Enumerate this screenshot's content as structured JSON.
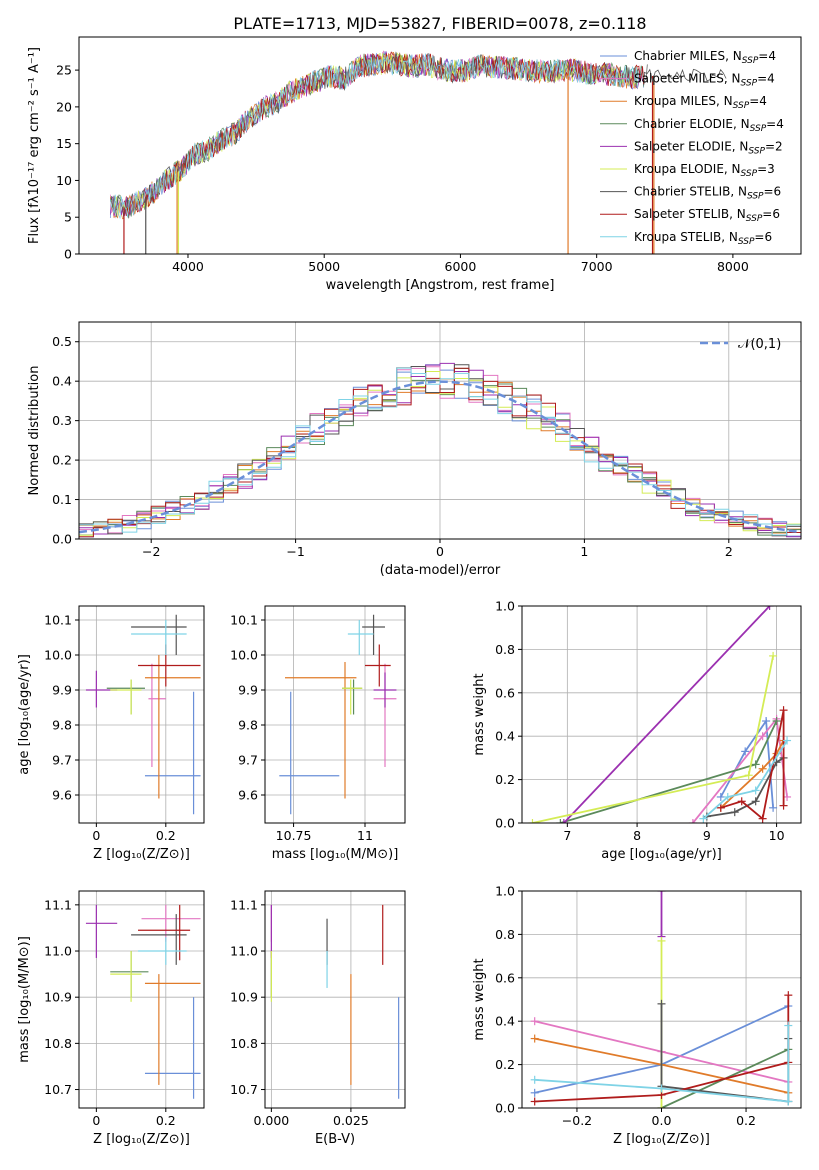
{
  "figure_title": "PLATE=1713, MJD=53827, FIBERID=0078, z=0.118",
  "colors": {
    "chabrier_miles": "#6a8fd8",
    "salpeter_miles": "#e377c2",
    "kroupa_miles": "#e07b2a",
    "chabrier_elodie": "#5b8a5b",
    "salpeter_elodie": "#9b30b0",
    "kroupa_elodie": "#d4ec55",
    "chabrier_stelib": "#555555",
    "salpeter_stelib": "#b01c1c",
    "kroupa_stelib": "#7fd3e6",
    "normal_curve": "#6a8fd8",
    "grid": "#b0b0b0"
  },
  "chart_data": [
    {
      "id": "spectrum",
      "type": "line",
      "xlabel": "wavelength [Angstrom, rest frame]",
      "ylabel": "Flux [fλ10⁻¹⁷ erg cm⁻² s⁻¹ A⁻¹]",
      "xlim": [
        3200,
        8500
      ],
      "ylim": [
        0,
        29.5
      ],
      "xticks": [
        4000,
        5000,
        6000,
        7000,
        8000
      ],
      "yticks": [
        0,
        5,
        10,
        15,
        20,
        25
      ],
      "grid": false,
      "legend_position": "right",
      "envelope_x": [
        3450,
        3550,
        3650,
        3750,
        3850,
        3950,
        4050,
        4150,
        4250,
        4350,
        4450,
        4550,
        4650,
        4750,
        4850,
        4950,
        5050,
        5150,
        5250,
        5350,
        5450,
        5550,
        5650,
        5750,
        5850,
        5950,
        6050,
        6150,
        6250,
        6350,
        6450,
        6550,
        6650,
        6750,
        6850,
        6950,
        7050,
        7150,
        7250,
        7350
      ],
      "envelope_y": [
        6.5,
        6.3,
        7.2,
        8.5,
        10.2,
        11.5,
        13.5,
        14.2,
        15.5,
        16.5,
        18.5,
        19.8,
        20.5,
        22.0,
        22.8,
        23.5,
        24.2,
        23.8,
        25.5,
        25.8,
        26.0,
        25.8,
        25.5,
        25.8,
        25.2,
        24.8,
        25.0,
        25.6,
        25.5,
        25.3,
        25.1,
        24.9,
        24.8,
        25.0,
        24.9,
        24.6,
        24.5,
        24.3,
        24.0,
        24.2
      ],
      "series": [
        {
          "name": "Chabrier MILES, N_SSP=4",
          "color_key": "chabrier_miles"
        },
        {
          "name": "Salpeter MILES, N_SSP=4",
          "color_key": "salpeter_miles"
        },
        {
          "name": "Kroupa MILES, N_SSP=4",
          "color_key": "kroupa_miles"
        },
        {
          "name": "Chabrier ELODIE, N_SSP=4",
          "color_key": "chabrier_elodie"
        },
        {
          "name": "Salpeter ELODIE, N_SSP=2",
          "color_key": "salpeter_elodie"
        },
        {
          "name": "Kroupa ELODIE, N_SSP=3",
          "color_key": "kroupa_elodie"
        },
        {
          "name": "Chabrier STELIB, N_SSP=6",
          "color_key": "chabrier_stelib"
        },
        {
          "name": "Salpeter STELIB, N_SSP=6",
          "color_key": "salpeter_stelib"
        },
        {
          "name": "Kroupa STELIB, N_SSP=6",
          "color_key": "kroupa_stelib"
        }
      ]
    },
    {
      "id": "residuals",
      "type": "bar",
      "xlabel": "(data-model)/error",
      "ylabel": "Normed distribution",
      "xlim": [
        -2.5,
        2.5
      ],
      "ylim": [
        0,
        0.55
      ],
      "xticks": [
        -2,
        -1,
        0,
        1,
        2
      ],
      "yticks": [
        0.0,
        0.1,
        0.2,
        0.3,
        0.4,
        0.5
      ],
      "grid": true,
      "legend_position": "top-right",
      "legend_label": "𝒩(0,1)",
      "bin_width": 0.1,
      "bin_start": -2.5
    },
    {
      "id": "age_vs_Z",
      "type": "scatter",
      "xlabel": "Z [log10(Z/Z⊙)]",
      "ylabel": "age  [log10(age/yr)]",
      "xlim": [
        -0.05,
        0.31
      ],
      "ylim": [
        9.52,
        10.14
      ],
      "xticks": [
        0.0,
        0.2
      ],
      "yticks": [
        9.6,
        9.7,
        9.8,
        9.9,
        10.0,
        10.1
      ],
      "grid": true,
      "points": [
        {
          "c": "chabrier_miles",
          "x": 0.24,
          "y": 9.655,
          "xerr": 0.04,
          "yerr": 0.11,
          "x2": 0.28,
          "xlo": 0.14,
          "xhi": 0.3,
          "ylo": 9.545,
          "yhi": 9.895
        },
        {
          "c": "salpeter_miles",
          "x": 0.16,
          "y": 9.875,
          "xlo": 0.15,
          "xhi": 0.2,
          "ylo": 9.68,
          "yhi": 9.975
        },
        {
          "c": "kroupa_miles",
          "x": 0.18,
          "y": 9.935,
          "xlo": 0.14,
          "xhi": 0.3,
          "ylo": 9.59,
          "yhi": 10.0
        },
        {
          "c": "chabrier_elodie",
          "x": 0.1,
          "y": 9.905,
          "xlo": 0.03,
          "xhi": 0.14,
          "ylo": 9.83,
          "yhi": 9.93
        },
        {
          "c": "salpeter_elodie",
          "x": 0.0,
          "y": 9.9,
          "xlo": -0.03,
          "xhi": 0.06,
          "ylo": 9.85,
          "yhi": 9.955
        },
        {
          "c": "kroupa_elodie",
          "x": 0.1,
          "y": 9.9,
          "xlo": 0.04,
          "xhi": 0.13,
          "ylo": 9.83,
          "yhi": 9.93
        },
        {
          "c": "chabrier_stelib",
          "x": 0.23,
          "y": 10.08,
          "xlo": 0.1,
          "xhi": 0.26,
          "ylo": 10.0,
          "yhi": 10.115
        },
        {
          "c": "salpeter_stelib",
          "x": 0.2,
          "y": 9.97,
          "xlo": 0.12,
          "xhi": 0.3,
          "ylo": 9.91,
          "yhi": 10.03
        },
        {
          "c": "kroupa_stelib",
          "x": 0.2,
          "y": 10.06,
          "xlo": 0.1,
          "xhi": 0.26,
          "ylo": 10.0,
          "yhi": 10.1
        }
      ]
    },
    {
      "id": "age_vs_mass",
      "type": "scatter",
      "xlabel": "mass [log10(M/M⊙)]",
      "ylabel": "",
      "xlim": [
        10.65,
        11.14
      ],
      "ylim": [
        9.52,
        10.14
      ],
      "xticks": [
        10.75,
        11.0
      ],
      "yticks": [
        9.6,
        9.7,
        9.8,
        9.9,
        10.0,
        10.1
      ],
      "grid": true,
      "points": [
        {
          "c": "chabrier_miles",
          "ylo": 9.545,
          "yhi": 9.895,
          "x": 10.74,
          "xlo": 10.7,
          "xhi": 10.91,
          "y": 9.655
        },
        {
          "c": "salpeter_miles",
          "ylo": 9.68,
          "yhi": 9.975,
          "x": 11.07,
          "xlo": 11.03,
          "xhi": 11.11,
          "y": 9.875
        },
        {
          "c": "kroupa_miles",
          "ylo": 9.59,
          "yhi": 9.98,
          "x": 10.93,
          "xlo": 10.72,
          "xhi": 10.97,
          "y": 9.935
        },
        {
          "c": "chabrier_elodie",
          "ylo": 9.83,
          "yhi": 9.93,
          "x": 10.96,
          "xlo": 10.92,
          "xhi": 10.99,
          "y": 9.905
        },
        {
          "c": "salpeter_elodie",
          "ylo": 9.85,
          "yhi": 9.95,
          "x": 11.07,
          "xlo": 11.03,
          "xhi": 11.11,
          "y": 9.9
        },
        {
          "c": "kroupa_elodie",
          "ylo": 9.83,
          "yhi": 9.93,
          "x": 10.95,
          "xlo": 10.92,
          "xhi": 10.99,
          "y": 9.905
        },
        {
          "c": "chabrier_stelib",
          "ylo": 10.0,
          "yhi": 10.115,
          "x": 11.03,
          "xlo": 10.99,
          "xhi": 11.07,
          "y": 10.08
        },
        {
          "c": "salpeter_stelib",
          "ylo": 9.91,
          "yhi": 10.03,
          "x": 11.05,
          "xlo": 11.0,
          "xhi": 11.09,
          "y": 9.97
        },
        {
          "c": "kroupa_stelib",
          "ylo": 10.0,
          "yhi": 10.1,
          "x": 10.98,
          "xlo": 10.94,
          "xhi": 11.03,
          "y": 10.06
        }
      ]
    },
    {
      "id": "weight_vs_age",
      "type": "line",
      "xlabel": "age  [log10(age/yr)]",
      "ylabel": "mass weight",
      "xlim": [
        6.35,
        10.35
      ],
      "ylim": [
        0,
        1.0
      ],
      "xticks": [
        7,
        8,
        9,
        10
      ],
      "yticks": [
        0.0,
        0.2,
        0.4,
        0.6,
        0.8,
        1.0
      ],
      "grid": true,
      "series": [
        {
          "c": "chabrier_miles",
          "x": [
            9.2,
            9.55,
            9.85,
            9.95
          ],
          "y": [
            0.12,
            0.33,
            0.47,
            0.07
          ]
        },
        {
          "c": "salpeter_miles",
          "x": [
            8.8,
            9.8,
            10.0,
            10.15
          ],
          "y": [
            0.0,
            0.4,
            0.48,
            0.12
          ]
        },
        {
          "c": "kroupa_miles",
          "x": [
            9.2,
            9.8,
            10.0,
            10.1
          ],
          "y": [
            0.07,
            0.25,
            0.32,
            0.38
          ]
        },
        {
          "c": "chabrier_elodie",
          "x": [
            6.9,
            9.7,
            10.0
          ],
          "y": [
            0.0,
            0.27,
            0.47
          ]
        },
        {
          "c": "salpeter_elodie",
          "x": [
            6.95,
            9.9
          ],
          "y": [
            0.0,
            1.0
          ]
        },
        {
          "c": "kroupa_elodie",
          "x": [
            6.5,
            9.6,
            9.95
          ],
          "y": [
            0.0,
            0.22,
            0.77
          ]
        },
        {
          "c": "chabrier_stelib",
          "x": [
            9.0,
            9.4,
            9.7,
            10.0,
            10.1
          ],
          "y": [
            0.03,
            0.05,
            0.1,
            0.28,
            0.3
          ]
        },
        {
          "c": "salpeter_stelib",
          "x": [
            9.2,
            9.5,
            9.8,
            10.1,
            10.1
          ],
          "y": [
            0.07,
            0.1,
            0.02,
            0.52,
            0.08
          ]
        },
        {
          "c": "kroupa_stelib",
          "x": [
            8.95,
            9.3,
            9.7,
            10.15
          ],
          "y": [
            0.02,
            0.12,
            0.15,
            0.38
          ]
        }
      ]
    },
    {
      "id": "mass_vs_Z",
      "type": "scatter",
      "xlabel": "Z [log10(Z/Z⊙)]",
      "ylabel": "mass [log10(M/M⊙)]",
      "xlim": [
        -0.05,
        0.31
      ],
      "ylim": [
        10.66,
        11.13
      ],
      "xticks": [
        0.0,
        0.2
      ],
      "yticks": [
        10.7,
        10.8,
        10.9,
        11.0,
        11.1
      ],
      "grid": true,
      "points": [
        {
          "c": "chabrier_miles",
          "x": 0.28,
          "y": 10.735,
          "xlo": 0.14,
          "xhi": 0.3,
          "ylo": 10.68,
          "yhi": 10.9
        },
        {
          "c": "salpeter_miles",
          "x": 0.2,
          "y": 11.07,
          "xlo": 0.13,
          "xhi": 0.3,
          "ylo": 11.02,
          "yhi": 11.1
        },
        {
          "c": "kroupa_miles",
          "x": 0.18,
          "y": 10.93,
          "xlo": 0.14,
          "xhi": 0.3,
          "ylo": 10.71,
          "yhi": 10.95
        },
        {
          "c": "chabrier_elodie",
          "x": 0.1,
          "y": 10.955,
          "xlo": 0.04,
          "xhi": 0.15,
          "ylo": 10.9,
          "yhi": 11.0
        },
        {
          "c": "salpeter_elodie",
          "x": 0.0,
          "y": 11.06,
          "xlo": -0.03,
          "xhi": 0.06,
          "ylo": 10.985,
          "yhi": 11.1
        },
        {
          "c": "kroupa_elodie",
          "x": 0.1,
          "y": 10.95,
          "xlo": 0.04,
          "xhi": 0.13,
          "ylo": 10.89,
          "yhi": 11.0
        },
        {
          "c": "chabrier_stelib",
          "x": 0.23,
          "y": 11.035,
          "xlo": 0.1,
          "xhi": 0.26,
          "ylo": 10.97,
          "yhi": 11.08
        },
        {
          "c": "salpeter_stelib",
          "x": 0.24,
          "y": 11.045,
          "xlo": 0.12,
          "xhi": 0.27,
          "ylo": 10.98,
          "yhi": 11.1
        },
        {
          "c": "kroupa_stelib",
          "x": 0.2,
          "y": 11.0,
          "xlo": 0.12,
          "xhi": 0.26,
          "ylo": 10.97,
          "yhi": 11.03
        }
      ]
    },
    {
      "id": "mass_vs_ebv",
      "type": "scatter",
      "xlabel": "E(B-V)",
      "ylabel": "",
      "xlim": [
        -0.002,
        0.042
      ],
      "ylim": [
        10.66,
        11.13
      ],
      "xticks": [
        0.0,
        0.025
      ],
      "xtick_labels": [
        "0.000",
        "0.025"
      ],
      "yticks": [
        10.7,
        10.8,
        10.9,
        11.0,
        11.1
      ],
      "grid": true,
      "points": [
        {
          "c": "chabrier_miles",
          "x": 0.04,
          "ylo": 10.68,
          "yhi": 10.9
        },
        {
          "c": "salpeter_miles",
          "x": 0.0,
          "ylo": 11.02,
          "yhi": 11.1
        },
        {
          "c": "kroupa_miles",
          "x": 0.025,
          "ylo": 10.71,
          "yhi": 10.95
        },
        {
          "c": "chabrier_elodie",
          "x": 0.0,
          "ylo": 10.9,
          "yhi": 11.0
        },
        {
          "c": "salpeter_elodie",
          "x": 0.0,
          "ylo": 10.985,
          "yhi": 11.1
        },
        {
          "c": "kroupa_elodie",
          "x": 0.0,
          "ylo": 10.89,
          "yhi": 11.0
        },
        {
          "c": "chabrier_stelib",
          "x": 0.0175,
          "ylo": 10.97,
          "yhi": 11.07
        },
        {
          "c": "salpeter_stelib",
          "x": 0.035,
          "ylo": 10.97,
          "yhi": 11.1
        },
        {
          "c": "kroupa_stelib",
          "x": 0.0175,
          "ylo": 10.92,
          "yhi": 11.0
        }
      ]
    },
    {
      "id": "weight_vs_Z",
      "type": "line",
      "xlabel": "Z [log10(Z/Z⊙)]",
      "ylabel": "mass weight",
      "xlim": [
        -0.33,
        0.33
      ],
      "ylim": [
        0,
        1.0
      ],
      "xticks": [
        -0.2,
        0.0,
        0.2
      ],
      "xtick_labels": [
        "−0.2",
        "0.0",
        "0.2"
      ],
      "yticks": [
        0.0,
        0.2,
        0.4,
        0.6,
        0.8,
        1.0
      ],
      "grid": true,
      "series": [
        {
          "c": "chabrier_miles",
          "x": [
            -0.3,
            0.0,
            0.3
          ],
          "y": [
            0.07,
            0.2,
            0.47
          ]
        },
        {
          "c": "salpeter_miles",
          "x": [
            -0.3,
            0.0,
            0.3
          ],
          "y": [
            0.4,
            0.26,
            0.12
          ]
        },
        {
          "c": "kroupa_miles",
          "x": [
            -0.3,
            0.0,
            0.3
          ],
          "y": [
            0.32,
            0.2,
            0.07
          ]
        },
        {
          "c": "chabrier_elodie",
          "x": [
            0.0,
            0.3
          ],
          "y": [
            0.0,
            0.27
          ]
        },
        {
          "c": "salpeter_elodie",
          "x": [
            0.0,
            0.0
          ],
          "y": [
            0.79,
            1.0
          ]
        },
        {
          "c": "kroupa_elodie",
          "x": [
            0.0,
            0.0
          ],
          "y": [
            0.0,
            0.77
          ]
        },
        {
          "c": "chabrier_stelib",
          "x": [
            0.0,
            0.0,
            0.3,
            0.3
          ],
          "y": [
            0.48,
            0.1,
            0.03,
            0.32
          ]
        },
        {
          "c": "salpeter_stelib",
          "x": [
            -0.3,
            0.0,
            0.3,
            0.3
          ],
          "y": [
            0.03,
            0.06,
            0.21,
            0.52
          ]
        },
        {
          "c": "kroupa_stelib",
          "x": [
            -0.3,
            0.0,
            0.3,
            0.3
          ],
          "y": [
            0.13,
            0.09,
            0.03,
            0.38
          ]
        }
      ]
    }
  ]
}
